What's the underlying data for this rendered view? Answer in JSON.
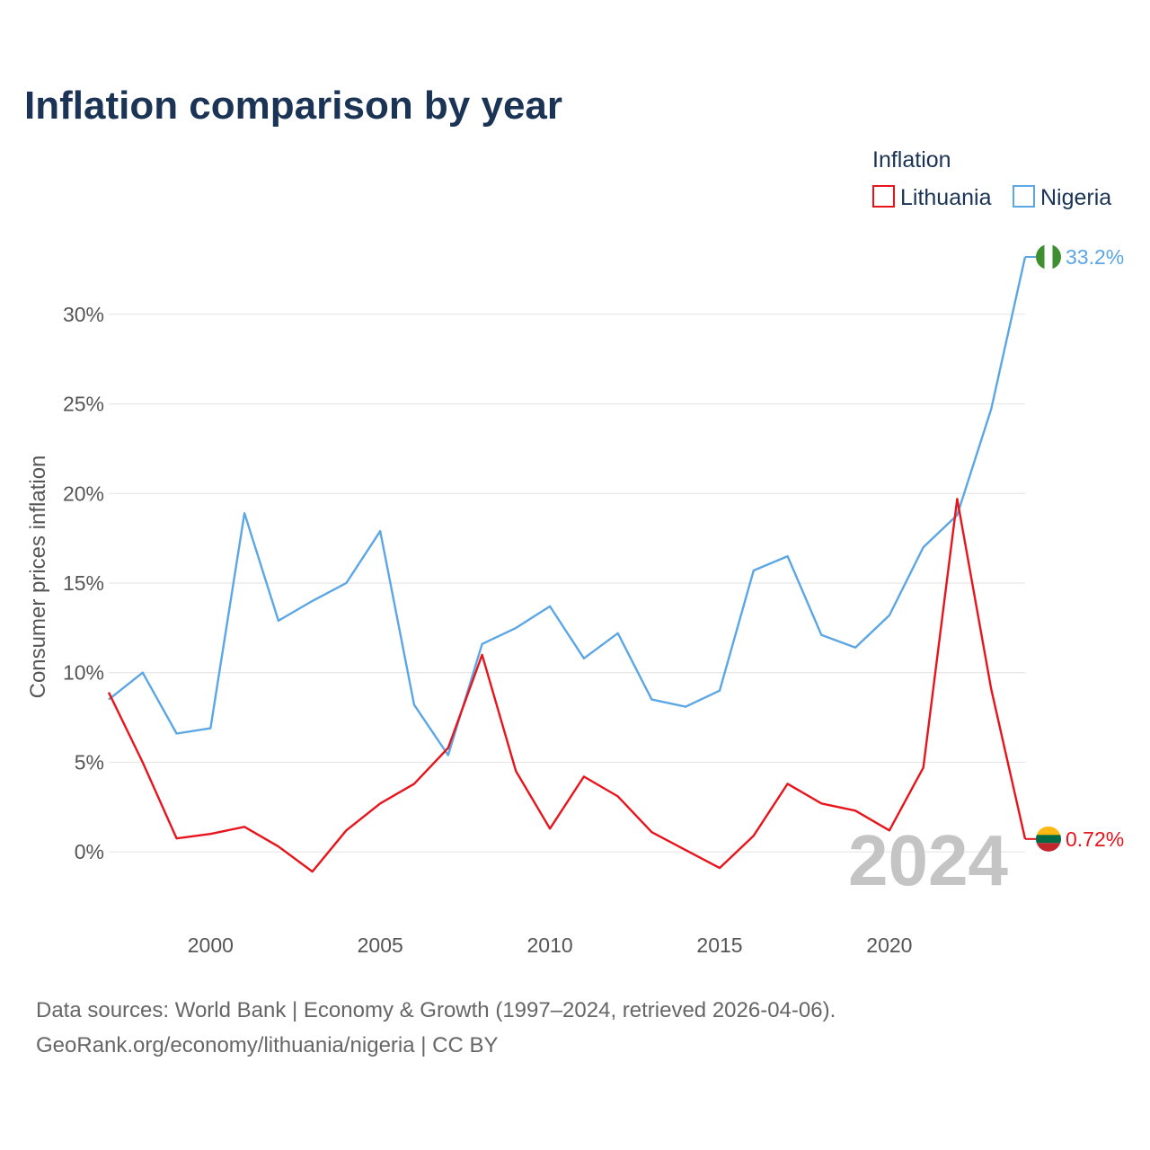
{
  "title": "Inflation comparison by year",
  "legend": {
    "title": "Inflation",
    "items": [
      {
        "name": "Lithuania",
        "color": "#e8141c"
      },
      {
        "name": "Nigeria",
        "color": "#5ba6e4"
      }
    ]
  },
  "current_year": "2024",
  "source": {
    "line1": "Data sources: World Bank | Economy & Growth (1997–2024, retrieved 2026-04-06).",
    "line2": "GeoRank.org/economy/lithuania/nigeria | CC BY"
  },
  "chart_data": {
    "type": "line",
    "title": "Inflation comparison by year",
    "xlabel": "",
    "ylabel": "Consumer prices inflation",
    "xlim": [
      1997,
      2024
    ],
    "ylim": [
      -3.5,
      33.5
    ],
    "x_ticks": [
      2000,
      2005,
      2010,
      2015,
      2020
    ],
    "x_tick_labels": [
      "2000",
      "2005",
      "2010",
      "2015",
      "2020"
    ],
    "y_ticks": [
      0,
      5,
      10,
      15,
      20,
      25,
      30
    ],
    "y_tick_labels": [
      "0%",
      "5%",
      "10%",
      "15%",
      "20%",
      "25%",
      "30%"
    ],
    "grid": true,
    "legend_position": "top-right",
    "x": [
      1997,
      1998,
      1999,
      2000,
      2001,
      2002,
      2003,
      2004,
      2005,
      2006,
      2007,
      2008,
      2009,
      2010,
      2011,
      2012,
      2013,
      2014,
      2015,
      2016,
      2017,
      2018,
      2019,
      2020,
      2021,
      2022,
      2023,
      2024
    ],
    "series": [
      {
        "name": "Lithuania",
        "color": "#e8141c",
        "end_label": "0.72%",
        "values": [
          8.9,
          5.0,
          0.75,
          1.0,
          1.4,
          0.3,
          -1.1,
          1.2,
          2.7,
          3.8,
          5.8,
          11.0,
          4.5,
          1.3,
          4.2,
          3.1,
          1.1,
          0.1,
          -0.9,
          0.9,
          3.8,
          2.7,
          2.3,
          1.2,
          4.7,
          19.7,
          9.1,
          0.72
        ]
      },
      {
        "name": "Nigeria",
        "color": "#5ba6e4",
        "end_label": "33.2%",
        "values": [
          8.5,
          10.0,
          6.6,
          6.9,
          18.9,
          12.9,
          14.0,
          15.0,
          17.9,
          8.2,
          5.4,
          11.6,
          12.5,
          13.7,
          10.8,
          12.2,
          8.5,
          8.1,
          9.0,
          15.7,
          16.5,
          12.1,
          11.4,
          13.2,
          17.0,
          18.8,
          24.7,
          33.2
        ]
      }
    ]
  }
}
